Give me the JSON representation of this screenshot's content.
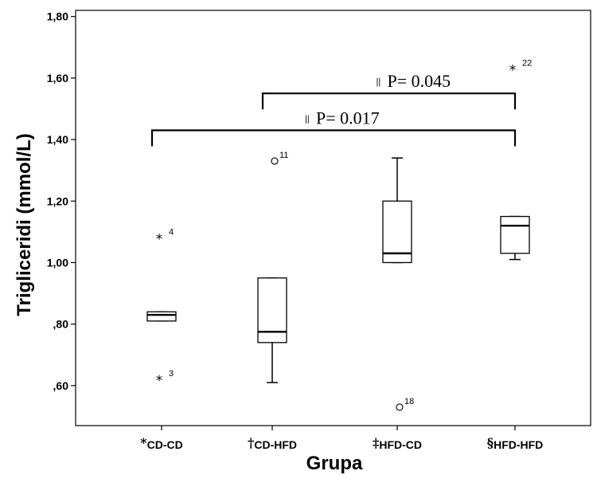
{
  "chart_data": {
    "type": "box",
    "xlabel": "Grupa",
    "ylabel": "Trigliceridi (mmol/L)",
    "ylim": [
      0.47,
      1.82
    ],
    "yticks": [
      0.6,
      0.8,
      1.0,
      1.2,
      1.4,
      1.6,
      1.8
    ],
    "ytick_labels": [
      ",60",
      ",80",
      "1,00",
      "1,20",
      "1,40",
      "1,60",
      "1,80"
    ],
    "grid": false,
    "categories": [
      {
        "mark": "*",
        "name": "CD-CD"
      },
      {
        "mark": "†",
        "name": "CD-HFD"
      },
      {
        "mark": "‡",
        "name": "HFD-CD"
      },
      {
        "mark": "§",
        "name": "HFD-HFD"
      }
    ],
    "boxes": [
      {
        "whisker_low": 0.81,
        "q1": 0.81,
        "median": 0.83,
        "q3": 0.84,
        "whisker_high": 0.84,
        "outliers": [
          {
            "value": 1.08,
            "label": "4",
            "symbol": "star"
          },
          {
            "value": 0.62,
            "label": "3",
            "symbol": "star"
          }
        ]
      },
      {
        "whisker_low": 0.61,
        "q1": 0.74,
        "median": 0.775,
        "q3": 0.95,
        "whisker_high": 0.95,
        "outliers": [
          {
            "value": 1.33,
            "label": "11",
            "symbol": "circle"
          }
        ]
      },
      {
        "whisker_low": 1.0,
        "q1": 1.0,
        "median": 1.03,
        "q3": 1.2,
        "whisker_high": 1.34,
        "outliers": [
          {
            "value": 0.53,
            "label": "18",
            "symbol": "circle"
          }
        ]
      },
      {
        "whisker_low": 1.01,
        "q1": 1.03,
        "median": 1.12,
        "q3": 1.15,
        "whisker_high": 1.15,
        "outliers": [
          {
            "value": 1.63,
            "label": "22",
            "symbol": "star"
          }
        ]
      }
    ],
    "annotations": [
      {
        "text": "P= 0.045",
        "prefix": "||",
        "from": 1,
        "to": 3,
        "level": 1.55
      },
      {
        "text": "P= 0.017",
        "prefix": "||",
        "from": 0,
        "to": 3,
        "level": 1.43
      }
    ]
  }
}
